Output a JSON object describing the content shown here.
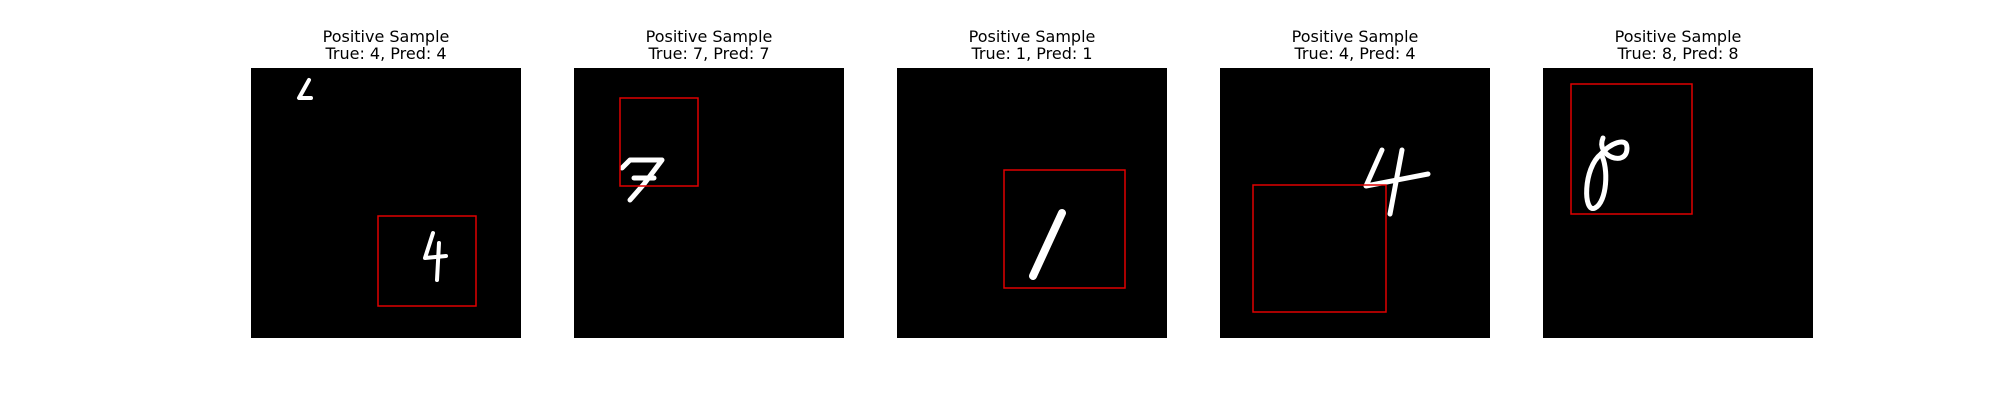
{
  "samples": [
    {
      "title": "Positive Sample",
      "subtitle": "True: 4, Pred: 4",
      "true_label": 4,
      "pred_label": 4,
      "digit": "4"
    },
    {
      "title": "Positive Sample",
      "subtitle": "True: 7, Pred: 7",
      "true_label": 7,
      "pred_label": 7,
      "digit": "7"
    },
    {
      "title": "Positive Sample",
      "subtitle": "True: 1, Pred: 1",
      "true_label": 1,
      "pred_label": 1,
      "digit": "1"
    },
    {
      "title": "Positive Sample",
      "subtitle": "True: 4, Pred: 4",
      "true_label": 4,
      "pred_label": 4,
      "digit": "4"
    },
    {
      "title": "Positive Sample",
      "subtitle": "True: 8, Pred: 8",
      "true_label": 8,
      "pred_label": 8,
      "digit": "8"
    }
  ],
  "colors": {
    "box": "#e00000",
    "digit": "#ffffff",
    "background": "#000000"
  }
}
